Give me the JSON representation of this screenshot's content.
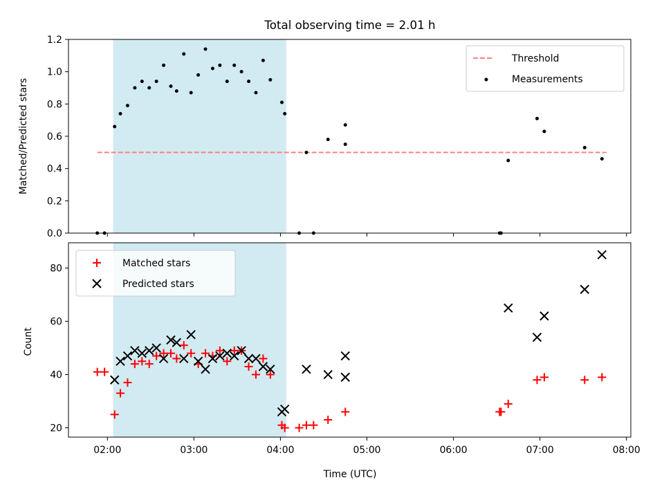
{
  "chart_data": {
    "title": "Total observing time = 2.01 h",
    "xlabel": "Time (UTC)",
    "x_ticks": [
      "02:00",
      "03:00",
      "04:00",
      "05:00",
      "06:00",
      "07:00",
      "08:00"
    ],
    "x_tick_hours": [
      2,
      3,
      4,
      5,
      6,
      7,
      8
    ],
    "xlim": [
      "01:33",
      "08:03"
    ],
    "shaded_interval": [
      "02:04",
      "04:04"
    ],
    "shaded_color": "#add8e6",
    "panels": [
      {
        "type": "scatter",
        "ylabel": "Matched/Predicted stars",
        "ylim": [
          0,
          1.2
        ],
        "y_ticks": [
          0.0,
          0.2,
          0.4,
          0.6,
          0.8,
          1.0,
          1.2
        ],
        "y_tick_labels": [
          "0.0",
          "0.2",
          "0.4",
          "0.6",
          "0.8",
          "1.0",
          "1.2"
        ],
        "legend_position": "top-right",
        "threshold": {
          "name": "Threshold",
          "value": 0.5,
          "x_start": "01:53",
          "x_end": "07:46",
          "color": "#ff7f7f"
        },
        "series": [
          {
            "name": "Measurements",
            "color": "#000000",
            "marker": "dot",
            "points": [
              [
                "01:53",
                0.0
              ],
              [
                "01:58",
                0.0
              ],
              [
                "02:05",
                0.66
              ],
              [
                "02:09",
                0.74
              ],
              [
                "02:14",
                0.79
              ],
              [
                "02:19",
                0.9
              ],
              [
                "02:24",
                0.94
              ],
              [
                "02:29",
                0.9
              ],
              [
                "02:34",
                0.94
              ],
              [
                "02:39",
                1.04
              ],
              [
                "02:44",
                0.91
              ],
              [
                "02:48",
                0.88
              ],
              [
                "02:53",
                1.11
              ],
              [
                "02:58",
                0.87
              ],
              [
                "03:03",
                0.98
              ],
              [
                "03:08",
                1.14
              ],
              [
                "03:13",
                1.02
              ],
              [
                "03:18",
                1.04
              ],
              [
                "03:23",
                0.94
              ],
              [
                "03:28",
                1.04
              ],
              [
                "03:33",
                1.0
              ],
              [
                "03:38",
                0.94
              ],
              [
                "03:43",
                0.87
              ],
              [
                "03:48",
                1.07
              ],
              [
                "03:53",
                0.95
              ],
              [
                "04:01",
                0.81
              ],
              [
                "04:03",
                0.74
              ],
              [
                "04:13",
                0.0
              ],
              [
                "04:18",
                0.5
              ],
              [
                "04:23",
                0.0
              ],
              [
                "04:33",
                0.58
              ],
              [
                "04:45",
                0.67
              ],
              [
                "04:45",
                0.55
              ],
              [
                "06:32",
                0.0
              ],
              [
                "06:33",
                0.0
              ],
              [
                "06:38",
                0.45
              ],
              [
                "06:58",
                0.71
              ],
              [
                "07:03",
                0.63
              ],
              [
                "07:31",
                0.53
              ],
              [
                "07:43",
                0.46
              ]
            ]
          }
        ]
      },
      {
        "type": "scatter",
        "ylabel": "Count",
        "ylim": [
          16.5,
          89.5
        ],
        "y_ticks": [
          20,
          40,
          60,
          80
        ],
        "y_tick_labels": [
          "20",
          "40",
          "60",
          "80"
        ],
        "legend_position": "top-left",
        "series": [
          {
            "name": "Matched stars",
            "color": "#ff0000",
            "marker": "plus",
            "points": [
              [
                "01:53",
                41
              ],
              [
                "01:58",
                41
              ],
              [
                "02:05",
                25
              ],
              [
                "02:09",
                33
              ],
              [
                "02:14",
                37
              ],
              [
                "02:19",
                44
              ],
              [
                "02:24",
                45
              ],
              [
                "02:29",
                44
              ],
              [
                "02:34",
                47
              ],
              [
                "02:39",
                48
              ],
              [
                "02:44",
                48
              ],
              [
                "02:48",
                46
              ],
              [
                "02:53",
                51
              ],
              [
                "02:58",
                48
              ],
              [
                "03:03",
                44
              ],
              [
                "03:08",
                48
              ],
              [
                "03:13",
                47
              ],
              [
                "03:18",
                49
              ],
              [
                "03:23",
                45
              ],
              [
                "03:28",
                49
              ],
              [
                "03:33",
                49
              ],
              [
                "03:38",
                43
              ],
              [
                "03:43",
                40
              ],
              [
                "03:48",
                46
              ],
              [
                "03:53",
                40
              ],
              [
                "04:01",
                21
              ],
              [
                "04:03",
                20
              ],
              [
                "04:13",
                20
              ],
              [
                "04:18",
                21
              ],
              [
                "04:23",
                21
              ],
              [
                "04:33",
                23
              ],
              [
                "04:45",
                26
              ],
              [
                "06:32",
                26
              ],
              [
                "06:33",
                26
              ],
              [
                "06:38",
                29
              ],
              [
                "06:58",
                38
              ],
              [
                "07:03",
                39
              ],
              [
                "07:31",
                38
              ],
              [
                "07:43",
                39
              ]
            ]
          },
          {
            "name": "Predicted stars",
            "color": "#000000",
            "marker": "cross",
            "points": [
              [
                "02:05",
                38
              ],
              [
                "02:09",
                45
              ],
              [
                "02:14",
                47
              ],
              [
                "02:19",
                49
              ],
              [
                "02:24",
                48
              ],
              [
                "02:29",
                49
              ],
              [
                "02:34",
                50
              ],
              [
                "02:39",
                46
              ],
              [
                "02:44",
                53
              ],
              [
                "02:48",
                52
              ],
              [
                "02:53",
                46
              ],
              [
                "02:58",
                55
              ],
              [
                "03:03",
                45
              ],
              [
                "03:08",
                42
              ],
              [
                "03:13",
                46
              ],
              [
                "03:18",
                47
              ],
              [
                "03:23",
                48
              ],
              [
                "03:28",
                47
              ],
              [
                "03:33",
                49
              ],
              [
                "03:38",
                46
              ],
              [
                "03:43",
                46
              ],
              [
                "03:48",
                43
              ],
              [
                "03:53",
                42
              ],
              [
                "04:01",
                26
              ],
              [
                "04:03",
                27
              ],
              [
                "04:18",
                42
              ],
              [
                "04:33",
                40
              ],
              [
                "04:45",
                39
              ],
              [
                "04:45",
                47
              ],
              [
                "06:38",
                65
              ],
              [
                "06:58",
                54
              ],
              [
                "07:03",
                62
              ],
              [
                "07:31",
                72
              ],
              [
                "07:43",
                85
              ]
            ]
          }
        ]
      }
    ]
  }
}
